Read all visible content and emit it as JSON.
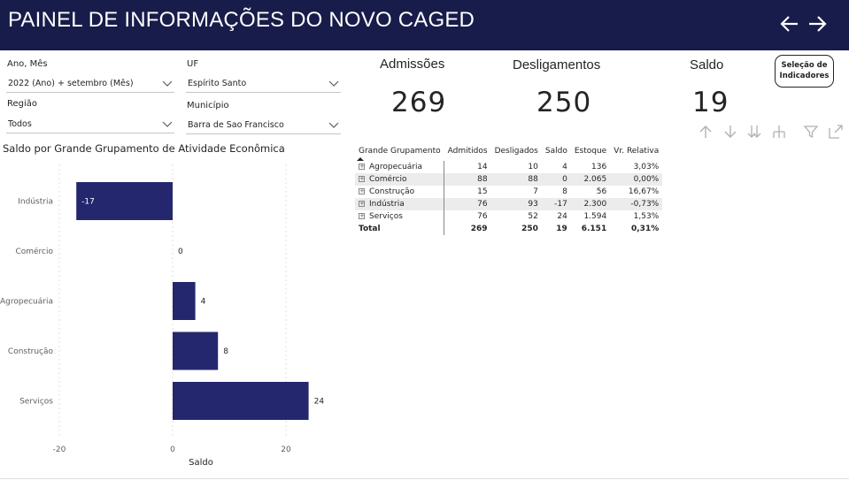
{
  "header": {
    "title": "PAINEL DE INFORMAÇÕES DO NOVO CAGED",
    "back_icon": "arrow-left-icon",
    "forward_icon": "arrow-right-icon",
    "background_color": "#181c4a"
  },
  "filters": {
    "ano_mes": {
      "label": "Ano, Mês",
      "value": "2022 (Ano) + setembro (Mês)"
    },
    "uf": {
      "label": "UF",
      "value": "Espírito Santo"
    },
    "regiao": {
      "label": "Região",
      "value": "Todos"
    },
    "municipio": {
      "label": "Município",
      "value": "Barra de Sao Francisco"
    }
  },
  "kpis": {
    "admissoes": {
      "label": "Admissões",
      "value": "269"
    },
    "desligamentos": {
      "label": "Desligamentos",
      "value": "250"
    },
    "saldo": {
      "label": "Saldo",
      "value": "19"
    }
  },
  "selection_button": {
    "line1": "Seleção de",
    "line2": "Indicadores"
  },
  "toolbar_icons": [
    "arrow-up-icon",
    "arrow-down-icon",
    "double-arrow-down-icon",
    "expand-hierarchy-icon",
    "filter-icon",
    "focus-mode-icon"
  ],
  "chart_title": "Saldo por Grande Grupamento de Atividade Econômica",
  "chart_data": {
    "type": "bar",
    "orientation": "horizontal",
    "categories": [
      "Indústria",
      "Comércio",
      "Agropecuária",
      "Construção",
      "Serviços"
    ],
    "values": [
      -17,
      0,
      4,
      8,
      24
    ],
    "data_labels": [
      "-17",
      "0",
      "4",
      "8",
      "24"
    ],
    "xlabel": "Saldo",
    "ylabel": "",
    "xlim": [
      -20,
      25
    ],
    "xticks": [
      -20,
      0,
      20
    ],
    "xtick_labels": [
      "-20",
      "0",
      "20"
    ],
    "bar_color": "#24276e",
    "grid": true
  },
  "table": {
    "headers": [
      "Grande Grupamento",
      "Admitidos",
      "Desligados",
      "Saldo",
      "Estoque",
      "Vr. Relativa"
    ],
    "rows": [
      [
        "Agropecuária",
        "14",
        "10",
        "4",
        "136",
        "3,03%"
      ],
      [
        "Comércio",
        "88",
        "88",
        "0",
        "2.065",
        "0,00%"
      ],
      [
        "Construção",
        "15",
        "7",
        "8",
        "56",
        "16,67%"
      ],
      [
        "Indústria",
        "76",
        "93",
        "-17",
        "2.300",
        "-0,73%"
      ],
      [
        "Serviços",
        "76",
        "52",
        "24",
        "1.594",
        "1,53%"
      ]
    ],
    "total": [
      "Total",
      "269",
      "250",
      "19",
      "6.151",
      "0,31%"
    ]
  }
}
